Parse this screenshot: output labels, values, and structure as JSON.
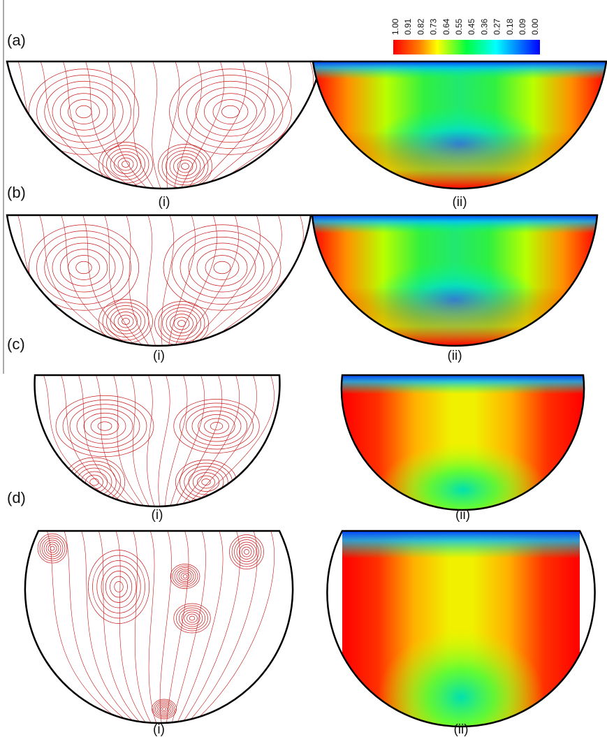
{
  "panels": [
    {
      "label": "(a)",
      "left_caption": "(i)",
      "right_caption": "(ii)"
    },
    {
      "label": "(b)",
      "left_caption": "(i)",
      "right_caption": "(ii)"
    },
    {
      "label": "(c)",
      "left_caption": "(i)",
      "right_caption": "(ii)"
    },
    {
      "label": "(d)",
      "left_caption": "(i)",
      "right_caption": "(ii)"
    }
  ],
  "colorbar": {
    "tick_labels": [
      "1.00",
      "0.91",
      "0.82",
      "0.73",
      "0.64",
      "0.55",
      "0.45",
      "0.36",
      "0.27",
      "0.18",
      "0.09",
      "0.00"
    ]
  }
}
